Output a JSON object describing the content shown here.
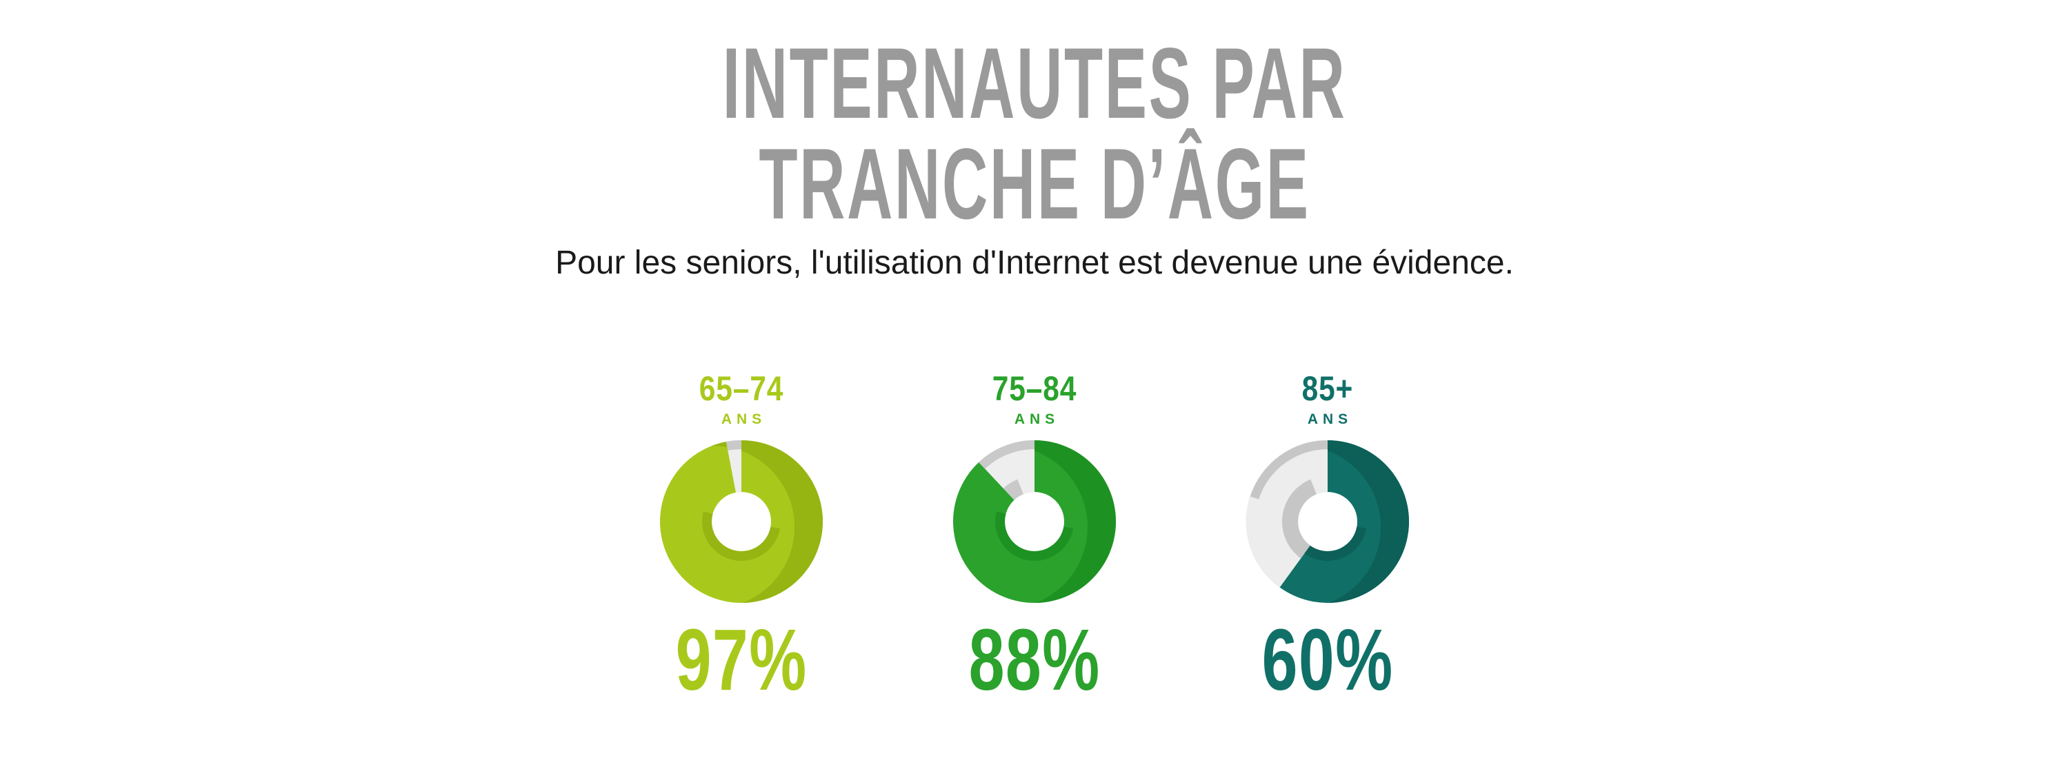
{
  "page": {
    "background": "#ffffff"
  },
  "header": {
    "title_line1": "INTERNAUTES PAR",
    "title_line2": "TRANCHE D’ÂGE",
    "title_color": "#9a9a9a",
    "subtitle": "Pour les seniors, l'utilisation d'Internet est devenue une évidence.",
    "subtitle_color": "#1a1a1a"
  },
  "chart_data": {
    "type": "pie",
    "variant": "donut-3d",
    "title": "INTERNAUTES PAR TRANCHE D’ÂGE",
    "subtitle": "Pour les seniors, l'utilisation d'Internet est devenue une évidence.",
    "unit": "%",
    "legend": "none",
    "start_angle_deg": 0,
    "direction": "clockwise",
    "series": [
      {
        "category": "65–74 ans",
        "label": "65–74",
        "sublabel": "ANS",
        "value": 97,
        "value_label": "97%",
        "color": "#a8c91b",
        "color_dark": "#96b513",
        "remainder": 3,
        "remainder_color": "#eeeeee",
        "remainder_dark": "#c9c9c9"
      },
      {
        "category": "75–84 ans",
        "label": "75–84",
        "sublabel": "ANS",
        "value": 88,
        "value_label": "88%",
        "color": "#2aa22c",
        "color_dark": "#1e9123",
        "remainder": 12,
        "remainder_color": "#eeeeee",
        "remainder_dark": "#c9c9c9"
      },
      {
        "category": "85+ ans",
        "label": "85+",
        "sublabel": "ANS",
        "value": 60,
        "value_label": "60%",
        "color": "#107068",
        "color_dark": "#0c6058",
        "remainder": 40,
        "remainder_color": "#ededed",
        "remainder_dark": "#c6c6c6"
      }
    ]
  }
}
